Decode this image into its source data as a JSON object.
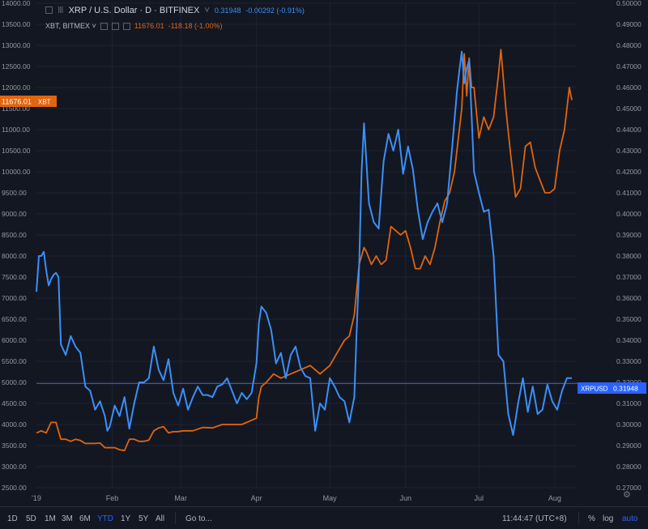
{
  "header": {
    "symbol_title": "XRP / U.S. Dollar · D · BITFINEX",
    "symbol_chevron": "˅",
    "price": "0.31948",
    "change": "-0.00292 (-0.91%)"
  },
  "overlay": {
    "symbol": "XBT, BITMEX ˅",
    "price": "11676.01",
    "change": "-118.18 (-1.00%)"
  },
  "left_axis": {
    "ticks": [
      "14000.00",
      "13500.00",
      "13000.00",
      "12500.00",
      "12000.00",
      "11500.00",
      "11000.00",
      "10500.00",
      "10000.00",
      "9500.00",
      "9000.00",
      "8500.00",
      "8000.00",
      "7500.00",
      "7000.00",
      "6500.00",
      "6000.00",
      "5500.00",
      "5000.00",
      "4500.00",
      "4000.00",
      "3500.00",
      "3000.00",
      "2500.00"
    ],
    "last_label": "11676.01",
    "last_tag": "XBT"
  },
  "right_axis": {
    "ticks": [
      "0.50000",
      "0.49000",
      "0.48000",
      "0.47000",
      "0.46000",
      "0.45000",
      "0.44000",
      "0.43000",
      "0.42000",
      "0.41000",
      "0.40000",
      "0.39000",
      "0.38000",
      "0.37000",
      "0.36000",
      "0.35000",
      "0.34000",
      "0.33000",
      "0.32000",
      "0.31000",
      "0.30000",
      "0.29000",
      "0.28000",
      "0.27000"
    ],
    "last_tag": "XRPUSD",
    "last_label": "0.31948"
  },
  "x_axis": {
    "labels": [
      "'19",
      "Feb",
      "Mar",
      "Apr",
      "May",
      "Jun",
      "Jul",
      "Aug"
    ]
  },
  "bottom_bar": {
    "ranges": [
      "1D",
      "5D",
      "1M",
      "3M",
      "6M",
      "YTD",
      "1Y",
      "5Y",
      "All"
    ],
    "active_range": "YTD",
    "goto": "Go to...",
    "time": "11:44:47 (UTC+8)",
    "percent": "%",
    "log": "log",
    "auto": "auto"
  },
  "colors": {
    "background": "#131722",
    "xrp_line": "#3b8ff6",
    "xbt_line": "#e0650f",
    "grid": "#1f2330",
    "text": "#b2b5be"
  },
  "chart_data": {
    "type": "line",
    "x_range": [
      "2019-01-01",
      "2019-08-10"
    ],
    "left_ylim": [
      2500,
      14000
    ],
    "right_ylim": [
      0.27,
      0.5
    ],
    "series": [
      {
        "name": "XRP / U.S. Dollar",
        "axis": "right",
        "color": "#3b8ff6",
        "x": [
          "2019-01-01",
          "2019-01-02",
          "2019-01-03",
          "2019-01-04",
          "2019-01-05",
          "2019-01-06",
          "2019-01-07",
          "2019-01-08",
          "2019-01-09",
          "2019-01-10",
          "2019-01-11",
          "2019-01-13",
          "2019-01-15",
          "2019-01-17",
          "2019-01-19",
          "2019-01-21",
          "2019-01-23",
          "2019-01-25",
          "2019-01-27",
          "2019-01-29",
          "2019-01-30",
          "2019-01-31",
          "2019-02-02",
          "2019-02-04",
          "2019-02-06",
          "2019-02-08",
          "2019-02-10",
          "2019-02-12",
          "2019-02-14",
          "2019-02-16",
          "2019-02-18",
          "2019-02-20",
          "2019-02-22",
          "2019-02-24",
          "2019-02-26",
          "2019-02-28",
          "2019-03-02",
          "2019-03-04",
          "2019-03-06",
          "2019-03-08",
          "2019-03-10",
          "2019-03-12",
          "2019-03-14",
          "2019-03-16",
          "2019-03-18",
          "2019-03-20",
          "2019-03-22",
          "2019-03-24",
          "2019-03-26",
          "2019-03-28",
          "2019-03-30",
          "2019-04-01",
          "2019-04-02",
          "2019-04-03",
          "2019-04-05",
          "2019-04-07",
          "2019-04-09",
          "2019-04-11",
          "2019-04-13",
          "2019-04-15",
          "2019-04-17",
          "2019-04-19",
          "2019-04-21",
          "2019-04-23",
          "2019-04-25",
          "2019-04-27",
          "2019-04-29",
          "2019-05-01",
          "2019-05-03",
          "2019-05-05",
          "2019-05-07",
          "2019-05-09",
          "2019-05-11",
          "2019-05-12",
          "2019-05-13",
          "2019-05-14",
          "2019-05-15",
          "2019-05-17",
          "2019-05-19",
          "2019-05-21",
          "2019-05-23",
          "2019-05-25",
          "2019-05-27",
          "2019-05-29",
          "2019-05-31",
          "2019-06-02",
          "2019-06-04",
          "2019-06-06",
          "2019-06-08",
          "2019-06-10",
          "2019-06-12",
          "2019-06-14",
          "2019-06-16",
          "2019-06-18",
          "2019-06-20",
          "2019-06-22",
          "2019-06-23",
          "2019-06-24",
          "2019-06-25",
          "2019-06-26",
          "2019-06-27",
          "2019-06-28",
          "2019-06-29",
          "2019-07-01",
          "2019-07-03",
          "2019-07-05",
          "2019-07-07",
          "2019-07-09",
          "2019-07-11",
          "2019-07-13",
          "2019-07-15",
          "2019-07-17",
          "2019-07-19",
          "2019-07-21",
          "2019-07-23",
          "2019-07-25",
          "2019-07-27",
          "2019-07-29",
          "2019-07-31",
          "2019-08-02",
          "2019-08-04",
          "2019-08-06",
          "2019-08-08"
        ],
        "y": [
          0.363,
          0.38,
          0.38,
          0.382,
          0.373,
          0.366,
          0.369,
          0.371,
          0.372,
          0.37,
          0.338,
          0.333,
          0.342,
          0.337,
          0.334,
          0.318,
          0.316,
          0.307,
          0.311,
          0.304,
          0.297,
          0.299,
          0.309,
          0.304,
          0.313,
          0.298,
          0.31,
          0.32,
          0.32,
          0.322,
          0.337,
          0.326,
          0.321,
          0.331,
          0.315,
          0.309,
          0.317,
          0.307,
          0.313,
          0.318,
          0.314,
          0.314,
          0.313,
          0.318,
          0.319,
          0.322,
          0.316,
          0.31,
          0.315,
          0.312,
          0.315,
          0.329,
          0.348,
          0.356,
          0.353,
          0.345,
          0.329,
          0.334,
          0.322,
          0.333,
          0.337,
          0.327,
          0.323,
          0.322,
          0.297,
          0.31,
          0.307,
          0.322,
          0.318,
          0.313,
          0.311,
          0.301,
          0.313,
          0.345,
          0.375,
          0.42,
          0.443,
          0.405,
          0.396,
          0.393,
          0.425,
          0.438,
          0.43,
          0.44,
          0.419,
          0.432,
          0.421,
          0.402,
          0.388,
          0.396,
          0.401,
          0.405,
          0.396,
          0.405,
          0.431,
          0.458,
          0.468,
          0.477,
          0.462,
          0.469,
          0.473,
          0.447,
          0.42,
          0.41,
          0.401,
          0.402,
          0.38,
          0.333,
          0.33,
          0.305,
          0.295,
          0.31,
          0.322,
          0.306,
          0.318,
          0.305,
          0.307,
          0.319,
          0.311,
          0.307,
          0.316,
          0.322,
          0.322
        ]
      },
      {
        "name": "XBT, BITMEX",
        "axis": "left",
        "color": "#e0650f",
        "x": [
          "2019-01-01",
          "2019-01-03",
          "2019-01-05",
          "2019-01-07",
          "2019-01-09",
          "2019-01-11",
          "2019-01-13",
          "2019-01-15",
          "2019-01-17",
          "2019-01-19",
          "2019-01-21",
          "2019-01-23",
          "2019-01-25",
          "2019-01-27",
          "2019-01-29",
          "2019-01-31",
          "2019-02-02",
          "2019-02-04",
          "2019-02-06",
          "2019-02-08",
          "2019-02-10",
          "2019-02-12",
          "2019-02-14",
          "2019-02-16",
          "2019-02-18",
          "2019-02-20",
          "2019-02-22",
          "2019-02-24",
          "2019-02-26",
          "2019-02-28",
          "2019-03-02",
          "2019-03-06",
          "2019-03-10",
          "2019-03-14",
          "2019-03-18",
          "2019-03-22",
          "2019-03-26",
          "2019-03-30",
          "2019-04-01",
          "2019-04-02",
          "2019-04-03",
          "2019-04-05",
          "2019-04-08",
          "2019-04-11",
          "2019-04-15",
          "2019-04-19",
          "2019-04-23",
          "2019-04-27",
          "2019-05-01",
          "2019-05-04",
          "2019-05-07",
          "2019-05-09",
          "2019-05-11",
          "2019-05-12",
          "2019-05-13",
          "2019-05-14",
          "2019-05-15",
          "2019-05-16",
          "2019-05-18",
          "2019-05-20",
          "2019-05-22",
          "2019-05-24",
          "2019-05-26",
          "2019-05-28",
          "2019-05-30",
          "2019-06-01",
          "2019-06-03",
          "2019-06-05",
          "2019-06-07",
          "2019-06-09",
          "2019-06-11",
          "2019-06-13",
          "2019-06-15",
          "2019-06-17",
          "2019-06-19",
          "2019-06-21",
          "2019-06-22",
          "2019-06-23",
          "2019-06-24",
          "2019-06-25",
          "2019-06-26",
          "2019-06-27",
          "2019-06-28",
          "2019-06-29",
          "2019-07-01",
          "2019-07-03",
          "2019-07-05",
          "2019-07-07",
          "2019-07-09",
          "2019-07-10",
          "2019-07-12",
          "2019-07-14",
          "2019-07-16",
          "2019-07-18",
          "2019-07-20",
          "2019-07-22",
          "2019-07-24",
          "2019-07-26",
          "2019-07-28",
          "2019-07-30",
          "2019-08-01",
          "2019-08-03",
          "2019-08-05",
          "2019-08-06",
          "2019-08-07",
          "2019-08-08"
        ],
        "y": [
          3800,
          3850,
          3800,
          4050,
          4050,
          3650,
          3650,
          3600,
          3650,
          3620,
          3550,
          3550,
          3550,
          3560,
          3450,
          3450,
          3450,
          3400,
          3380,
          3650,
          3650,
          3600,
          3600,
          3630,
          3850,
          3920,
          3950,
          3800,
          3830,
          3830,
          3850,
          3850,
          3930,
          3920,
          4000,
          4000,
          4000,
          4100,
          4150,
          4650,
          4900,
          5000,
          5200,
          5100,
          5200,
          5300,
          5400,
          5200,
          5400,
          5700,
          6000,
          6100,
          6600,
          7200,
          7800,
          8000,
          8200,
          8100,
          7800,
          8000,
          7800,
          7900,
          8700,
          8600,
          8500,
          8600,
          8200,
          7700,
          7700,
          8000,
          7800,
          8200,
          8800,
          9300,
          9500,
          10000,
          10500,
          11000,
          11500,
          12800,
          11800,
          12700,
          12000,
          12000,
          10800,
          11300,
          11000,
          11300,
          12300,
          12900,
          11500,
          10400,
          9400,
          9600,
          10600,
          10700,
          10100,
          9800,
          9500,
          9500,
          9600,
          10500,
          11000,
          11500,
          12000,
          11700
        ]
      }
    ]
  }
}
